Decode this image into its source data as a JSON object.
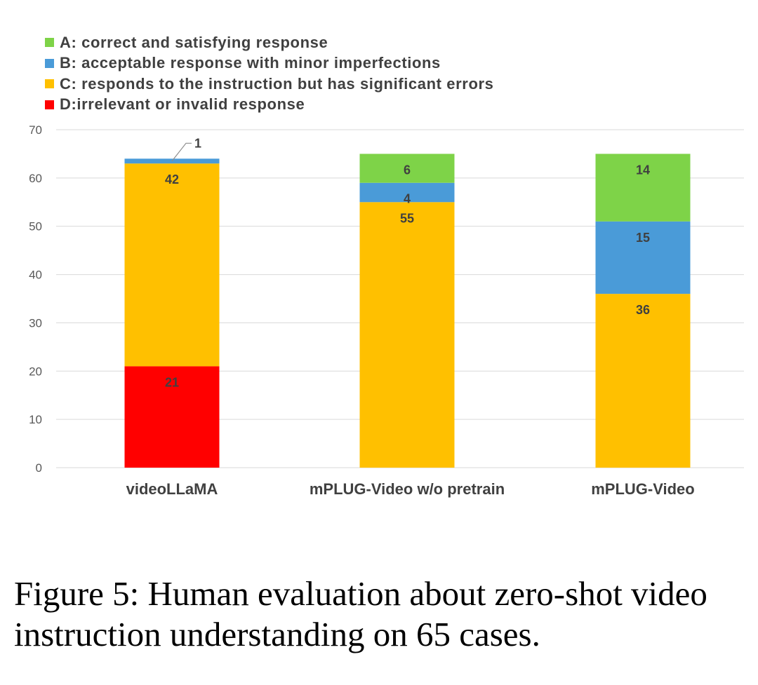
{
  "chart_data": {
    "type": "bar",
    "stacked": true,
    "categories": [
      "videoLLaMA",
      "mPLUG-Video w/o pretrain",
      "mPLUG-Video"
    ],
    "series": [
      {
        "name": "D:irrelevant or invalid response",
        "color": "#FF0000",
        "values": [
          21,
          0,
          0
        ]
      },
      {
        "name": "C: responds to the instruction but has significant errors",
        "color": "#FFC000",
        "values": [
          42,
          55,
          36
        ]
      },
      {
        "name": "B: acceptable response with minor imperfections",
        "color": "#4A9BD8",
        "values": [
          1,
          4,
          15
        ]
      },
      {
        "name": "A: correct and satisfying response",
        "color": "#7ED348",
        "values": [
          0,
          6,
          14
        ]
      }
    ],
    "ylim": [
      0,
      70
    ],
    "yticks": [
      0,
      10,
      20,
      30,
      40,
      50,
      60,
      70
    ],
    "grid": true,
    "legend_position": "top-left"
  },
  "legend": [
    {
      "label": "A: correct and satisfying response",
      "color": "#7ED348"
    },
    {
      "label": "B: acceptable response with minor imperfections",
      "color": "#4A9BD8"
    },
    {
      "label": "C: responds to the instruction but has significant errors",
      "color": "#FFC000"
    },
    {
      "label": "D:irrelevant or invalid response",
      "color": "#FF0000"
    }
  ],
  "caption": "Figure 5: Human evaluation about zero-shot video instruction understanding on 65 cases."
}
